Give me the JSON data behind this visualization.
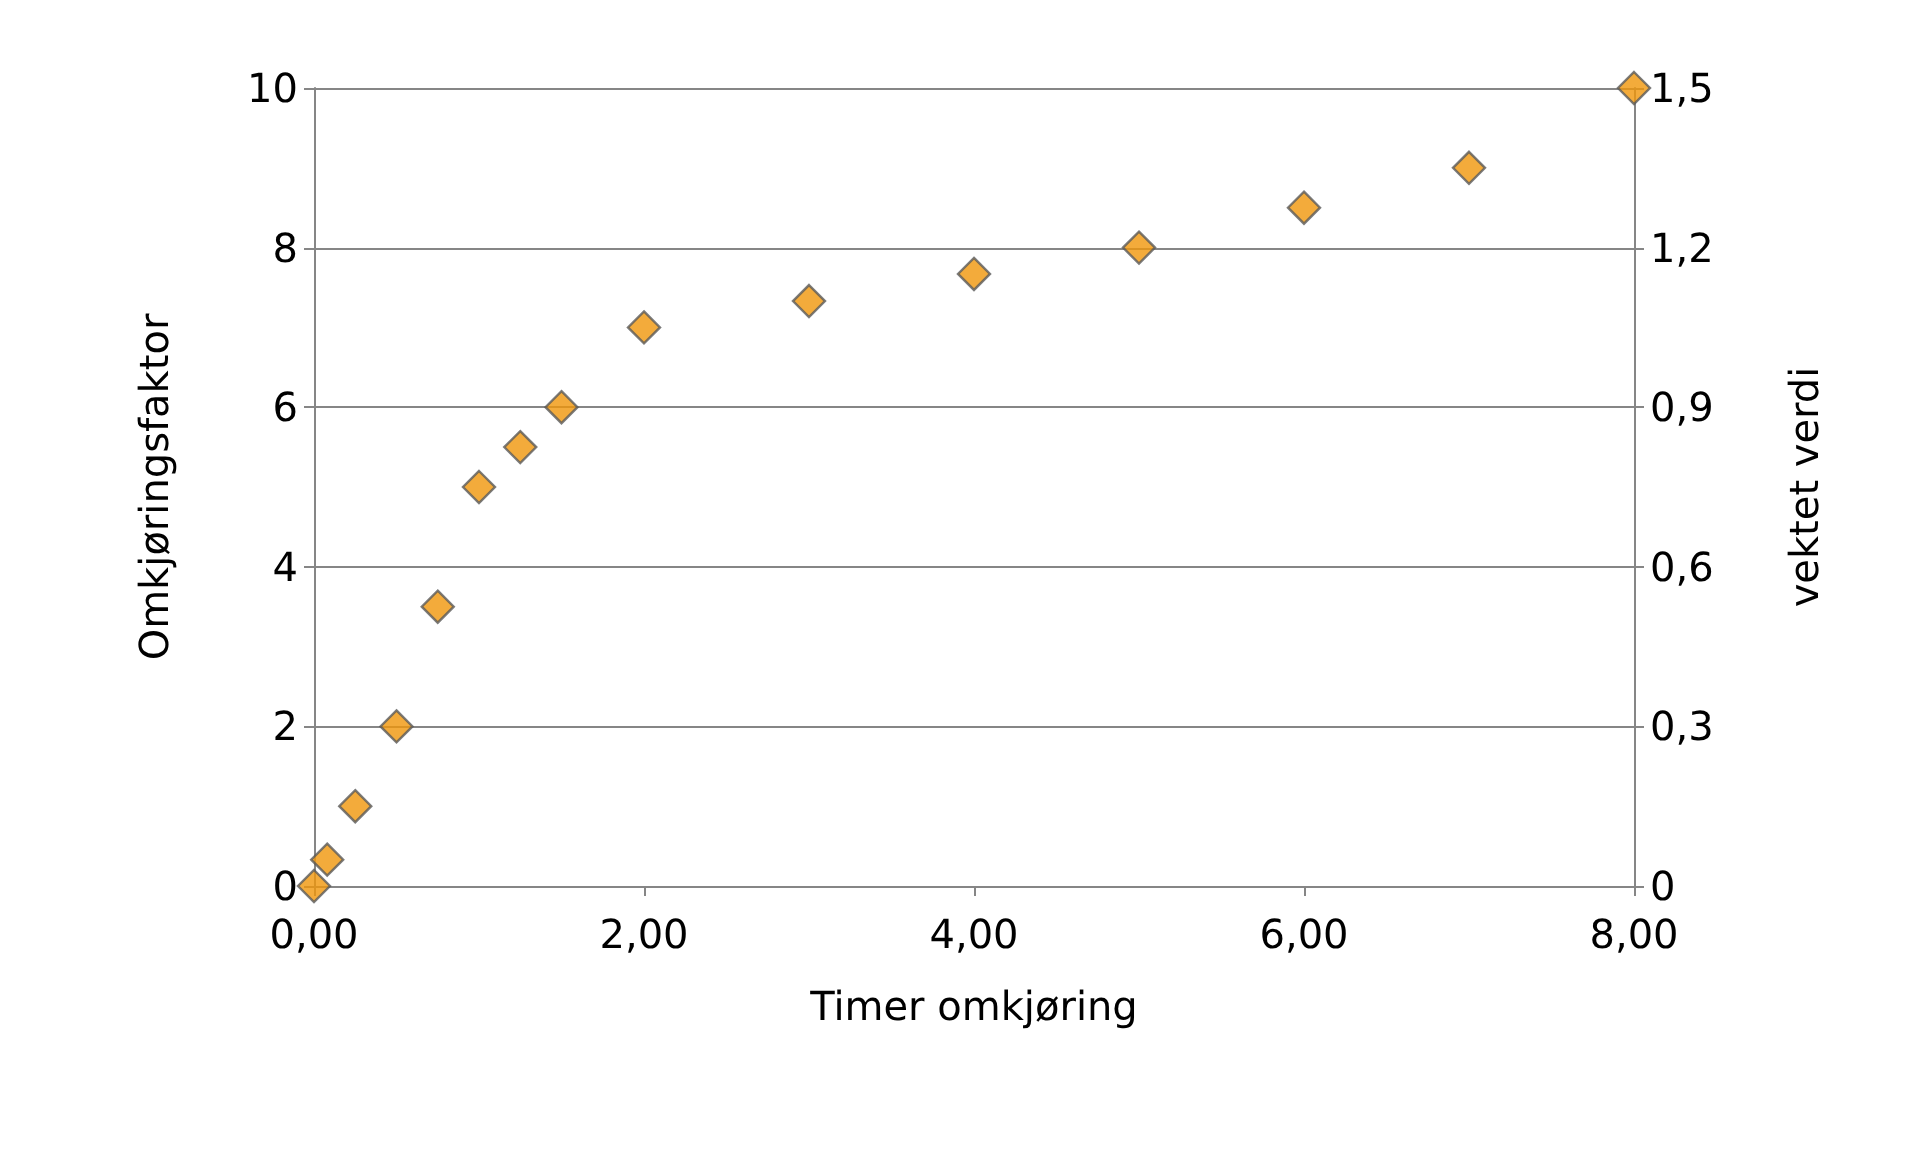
{
  "chart_data": {
    "type": "scatter",
    "xlabel": "Timer omkjøring",
    "ylabel": "Omkjøringsfaktor",
    "y2label": "vektet verdi",
    "x": [
      0,
      0.08,
      0.25,
      0.5,
      0.75,
      1,
      1.25,
      1.5,
      2,
      3,
      4,
      5,
      6,
      7,
      8
    ],
    "series": [
      {
        "color": "#f0960a",
        "values": [
          0,
          0.33,
          1,
          2,
          3.5,
          5,
          5.5,
          6,
          7,
          7.33,
          7.67,
          8,
          8.5,
          9,
          10
        ]
      }
    ],
    "xlim": [
      0,
      8
    ],
    "xticks": [
      {
        "value": 0,
        "label": "0,00"
      },
      {
        "value": 2,
        "label": "2,00"
      },
      {
        "value": 4,
        "label": "4,00"
      },
      {
        "value": 6,
        "label": "6,00"
      },
      {
        "value": 8,
        "label": "8,00"
      }
    ],
    "ylim": [
      0,
      10
    ],
    "yticks": [
      0,
      2,
      4,
      6,
      8,
      10
    ],
    "y2lim": [
      0,
      1.5
    ],
    "y2ticks": [
      0,
      {
        "value": 0.3,
        "label": "0,3"
      },
      {
        "value": 0.6,
        "label": "0,6"
      },
      {
        "value": 0.9,
        "label": "0,9"
      },
      {
        "value": 1.2,
        "label": "1,2"
      },
      {
        "value": 1.5,
        "label": "1,5"
      }
    ],
    "grid": "y",
    "marker": "diamond"
  }
}
